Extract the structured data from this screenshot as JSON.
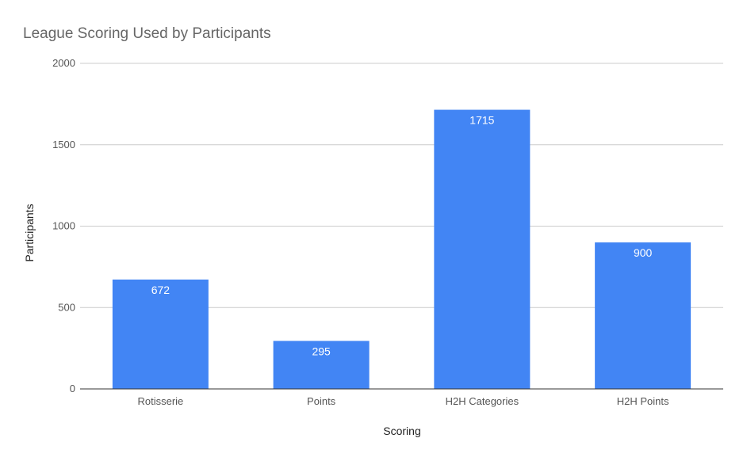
{
  "chart_data": {
    "type": "bar",
    "title": "League Scoring Used by Participants",
    "xlabel": "Scoring",
    "ylabel": "Participants",
    "categories": [
      "Rotisserie",
      "Points",
      "H2H Categories",
      "H2H Points"
    ],
    "values": [
      672,
      295,
      1715,
      900
    ],
    "data_labels": [
      "672",
      "295",
      "1715",
      "900"
    ],
    "ylim": [
      0,
      2000
    ],
    "y_ticks": [
      0,
      500,
      1000,
      1500,
      2000
    ],
    "y_tick_labels": [
      "0",
      "500",
      "1000",
      "1500",
      "2000"
    ],
    "grid": true,
    "legend": "none",
    "colors": {
      "bar": "#4285f4",
      "grid": "#cccccc",
      "baseline": "#333333"
    }
  }
}
